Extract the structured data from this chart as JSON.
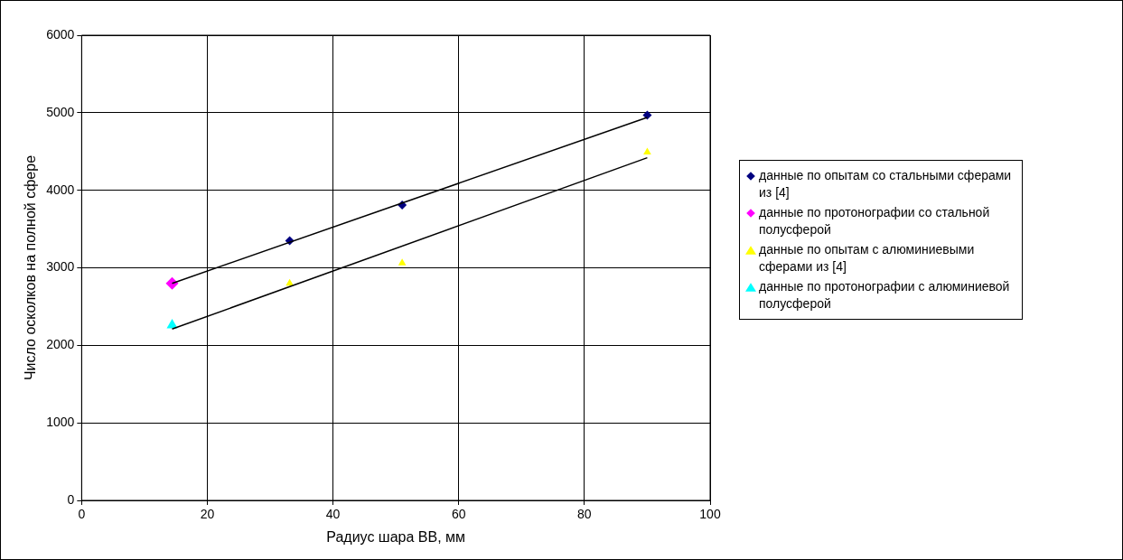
{
  "chart_data": {
    "type": "scatter",
    "xlabel": "Радиус шара ВВ, мм",
    "ylabel": "Число осколков на полной сфере",
    "xlim": [
      0,
      100
    ],
    "xticks": [
      0,
      20,
      40,
      60,
      80,
      100
    ],
    "ylim": [
      0,
      6000
    ],
    "yticks": [
      0,
      1000,
      2000,
      3000,
      4000,
      5000,
      6000
    ],
    "grid": true,
    "legend": "right",
    "series": [
      {
        "name": "данные по опытам со стальными сферами из [4]",
        "color": "#000080",
        "marker": "diamond",
        "x": [
          33.1,
          51,
          90
        ],
        "values": [
          3350,
          3810,
          4970
        ]
      },
      {
        "name": "данные по протонографии со стальной полусферой",
        "color": "#ff00ff",
        "marker": "diamond",
        "x": [
          14.4
        ],
        "values": [
          2800
        ]
      },
      {
        "name": "данные по опытам с алюминиевыми сферами из [4]",
        "color": "#ffff00",
        "marker": "triangle",
        "x": [
          33.1,
          51,
          90
        ],
        "values": [
          2800,
          3060,
          4490
        ]
      },
      {
        "name": "данные по протонографии с алюминиевой полусферой",
        "color": "#00ffff",
        "marker": "triangle",
        "x": [
          14.4
        ],
        "values": [
          2260
        ]
      },
      {
        "type": "line",
        "color": "#000000",
        "marker": "none",
        "x": [
          14.4,
          90
        ],
        "values": [
          2800,
          4940
        ]
      },
      {
        "type": "line",
        "color": "#000000",
        "marker": "none",
        "x": [
          14.4,
          90
        ],
        "values": [
          2210,
          4420
        ]
      }
    ]
  }
}
